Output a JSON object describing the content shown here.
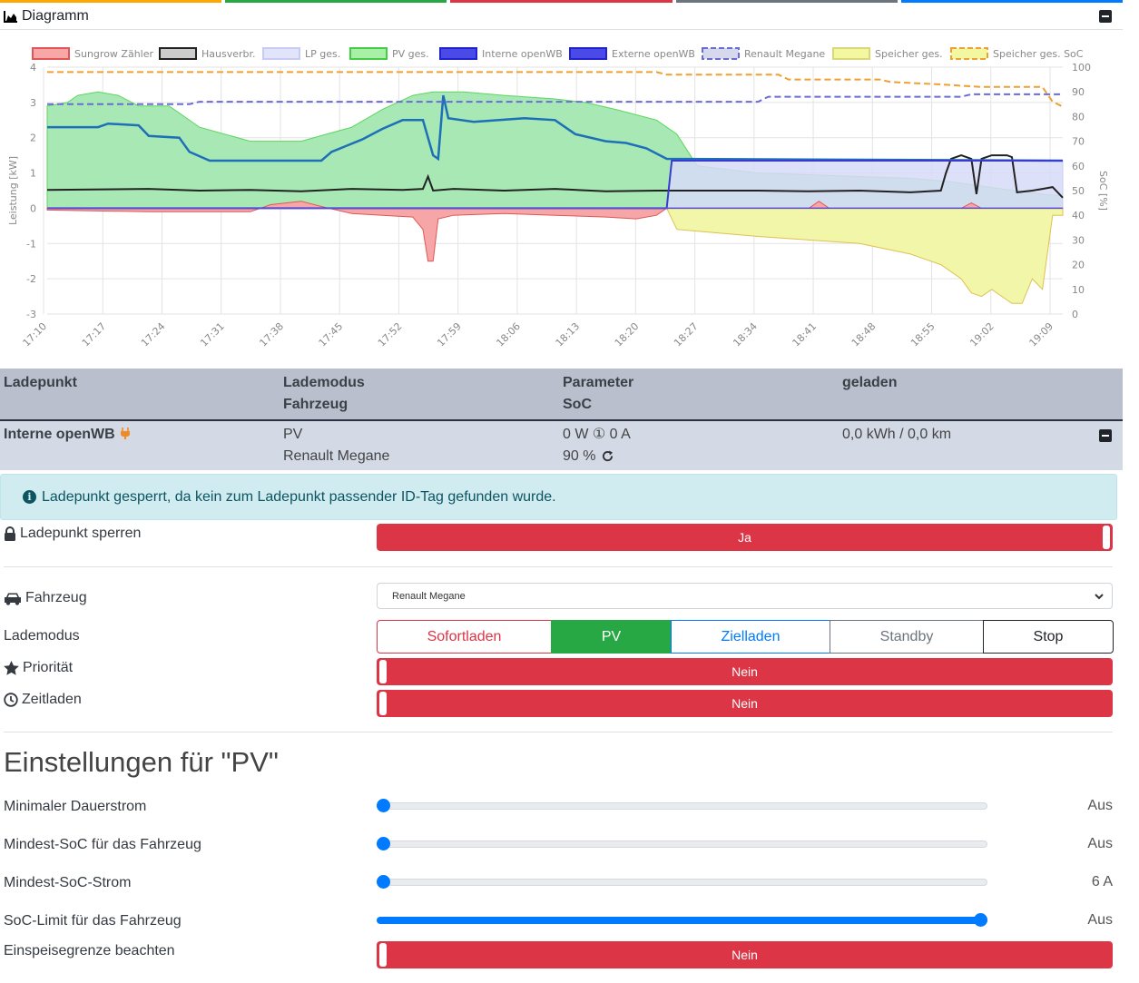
{
  "card": {
    "title": "Diagramm",
    "top_colors": [
      "#ffa600",
      "#28a745",
      "#dc3545",
      "#6c757d",
      "#007bff"
    ]
  },
  "chart_data": {
    "type": "area",
    "legend": [
      {
        "name": "Sungrow Zähler",
        "fill": "#f8a6a6",
        "stroke": "#e05555",
        "dashed": false
      },
      {
        "name": "Hausverbr.",
        "fill": "#cccccc",
        "stroke": "#222222",
        "dashed": false
      },
      {
        "name": "LP ges.",
        "fill": "#e2e4fb",
        "stroke": "#c8cbf4",
        "dashed": false
      },
      {
        "name": "PV ges.",
        "fill": "#a8f0a8",
        "stroke": "#44cc44",
        "dashed": false
      },
      {
        "name": "Interne openWB",
        "fill": "#4a4ae8",
        "stroke": "#2222cc",
        "dashed": false
      },
      {
        "name": "Externe openWB",
        "fill": "#4a4ae8",
        "stroke": "#2222cc",
        "dashed": false
      },
      {
        "name": "Renault Megane",
        "fill": "#d6d8ec",
        "stroke": "#6b6bd6",
        "dashed": true
      },
      {
        "name": "Speicher ges.",
        "fill": "#f3f7a0",
        "stroke": "#d8d87a",
        "dashed": false
      },
      {
        "name": "Speicher ges. SoC",
        "fill": "#f3f7a0",
        "stroke": "#f0a030",
        "dashed": true
      }
    ],
    "y_left": {
      "label": "Leistung [kW]",
      "min": -3,
      "max": 4,
      "ticks": [
        4,
        3,
        2,
        1,
        0,
        -1,
        -2,
        -3
      ]
    },
    "y_right": {
      "label": "SoC [%]",
      "min": 0,
      "max": 100,
      "ticks": [
        100,
        90,
        80,
        70,
        60,
        50,
        40,
        30,
        20,
        10,
        0
      ]
    },
    "x_ticks": [
      "17:10",
      "17:17",
      "17:24",
      "17:31",
      "17:38",
      "17:45",
      "17:52",
      "17:59",
      "18:06",
      "18:13",
      "18:20",
      "18:27",
      "18:34",
      "18:41",
      "18:48",
      "18:55",
      "19:02",
      "19:09"
    ],
    "series": {
      "pv": [
        [
          0,
          2.9
        ],
        [
          2,
          3.0
        ],
        [
          3,
          3.2
        ],
        [
          5,
          3.3
        ],
        [
          7,
          3.2
        ],
        [
          9,
          2.9
        ],
        [
          12,
          2.9
        ],
        [
          15,
          2.3
        ],
        [
          20,
          1.9
        ],
        [
          25,
          1.9
        ],
        [
          30,
          2.3
        ],
        [
          33,
          2.8
        ],
        [
          36,
          3.2
        ],
        [
          38,
          3.3
        ],
        [
          41,
          3.3
        ],
        [
          45,
          3.2
        ],
        [
          50,
          3.1
        ],
        [
          53,
          3.0
        ],
        [
          56,
          2.8
        ],
        [
          60,
          2.5
        ],
        [
          62,
          2.1
        ],
        [
          64,
          1.2
        ],
        [
          70,
          1.0
        ],
        [
          75,
          0.95
        ],
        [
          80,
          0.9
        ],
        [
          85,
          0.85
        ],
        [
          89,
          0.75
        ],
        [
          94,
          0.55
        ],
        [
          98,
          0.4
        ],
        [
          100,
          0.35
        ]
      ],
      "house": [
        [
          0,
          0.52
        ],
        [
          10,
          0.55
        ],
        [
          15,
          0.5
        ],
        [
          20,
          0.52
        ],
        [
          25,
          0.48
        ],
        [
          30,
          0.55
        ],
        [
          35,
          0.52
        ],
        [
          37,
          0.55
        ],
        [
          37.5,
          0.9
        ],
        [
          38,
          0.5
        ],
        [
          40,
          0.55
        ],
        [
          45,
          0.5
        ],
        [
          50,
          0.55
        ],
        [
          55,
          0.48
        ],
        [
          60,
          0.5
        ],
        [
          65,
          0.5
        ],
        [
          70,
          0.5
        ],
        [
          75,
          0.48
        ],
        [
          80,
          0.5
        ],
        [
          85,
          0.45
        ],
        [
          88,
          0.5
        ],
        [
          88.5,
          1.0
        ],
        [
          89,
          1.4
        ],
        [
          90,
          1.5
        ],
        [
          91,
          1.4
        ],
        [
          91.5,
          0.4
        ],
        [
          92,
          1.4
        ],
        [
          93,
          1.5
        ],
        [
          93.5,
          1.5
        ],
        [
          94.5,
          1.5
        ],
        [
          95,
          1.45
        ],
        [
          95.5,
          0.45
        ],
        [
          97,
          0.5
        ],
        [
          98,
          0.55
        ],
        [
          99,
          0.6
        ],
        [
          100,
          0.3
        ]
      ],
      "wb_intern": [
        [
          0,
          2.3
        ],
        [
          5,
          2.3
        ],
        [
          6,
          2.4
        ],
        [
          9,
          2.35
        ],
        [
          10,
          2.05
        ],
        [
          13,
          2.0
        ],
        [
          14,
          1.6
        ],
        [
          16,
          1.35
        ],
        [
          27,
          1.35
        ],
        [
          28,
          1.6
        ],
        [
          31,
          1.95
        ],
        [
          33,
          2.25
        ],
        [
          35,
          2.5
        ],
        [
          37,
          2.5
        ],
        [
          38,
          1.5
        ],
        [
          38.5,
          1.4
        ],
        [
          39,
          3.2
        ],
        [
          39.5,
          2.55
        ],
        [
          42,
          2.45
        ],
        [
          47,
          2.55
        ],
        [
          50,
          2.5
        ],
        [
          52,
          2.1
        ],
        [
          55,
          1.9
        ],
        [
          57,
          1.85
        ],
        [
          59,
          1.7
        ],
        [
          61,
          1.4
        ],
        [
          100,
          1.35
        ]
      ],
      "lp_total": [
        [
          0,
          0
        ],
        [
          61,
          0
        ],
        [
          61.5,
          1.35
        ],
        [
          100,
          1.35
        ]
      ],
      "grid": [
        [
          0,
          -0.05
        ],
        [
          10,
          -0.1
        ],
        [
          20,
          -0.1
        ],
        [
          22,
          0.1
        ],
        [
          25,
          0.2
        ],
        [
          27,
          0.05
        ],
        [
          30,
          -0.15
        ],
        [
          33,
          -0.2
        ],
        [
          36,
          -0.25
        ],
        [
          37,
          -0.6
        ],
        [
          37.5,
          -1.5
        ],
        [
          38,
          -1.5
        ],
        [
          38.5,
          -0.3
        ],
        [
          40,
          -0.2
        ],
        [
          45,
          -0.15
        ],
        [
          50,
          -0.2
        ],
        [
          55,
          -0.25
        ],
        [
          58,
          -0.3
        ],
        [
          60,
          -0.2
        ],
        [
          61,
          0
        ],
        [
          75,
          0
        ],
        [
          76,
          0.2
        ],
        [
          77,
          0
        ],
        [
          90,
          0
        ],
        [
          91,
          0.15
        ],
        [
          92,
          0
        ],
        [
          100,
          0
        ]
      ],
      "storage": [
        [
          0,
          0
        ],
        [
          61,
          0
        ],
        [
          62,
          -0.6
        ],
        [
          70,
          -0.8
        ],
        [
          75,
          -0.9
        ],
        [
          80,
          -1.0
        ],
        [
          85,
          -1.3
        ],
        [
          88,
          -1.6
        ],
        [
          90,
          -2.0
        ],
        [
          91,
          -2.4
        ],
        [
          92,
          -2.5
        ],
        [
          93,
          -2.3
        ],
        [
          94,
          -2.5
        ],
        [
          95,
          -2.7
        ],
        [
          96,
          -2.7
        ],
        [
          97,
          -2.0
        ],
        [
          98,
          -2.3
        ],
        [
          99,
          -0.2
        ],
        [
          100,
          -0.2
        ]
      ],
      "megane_soc": [
        [
          0,
          85
        ],
        [
          14,
          85
        ],
        [
          15,
          86
        ],
        [
          70,
          86
        ],
        [
          71,
          88
        ],
        [
          90,
          88
        ],
        [
          91,
          89
        ],
        [
          100,
          89
        ]
      ],
      "storage_soc": [
        [
          0,
          98
        ],
        [
          60,
          98
        ],
        [
          61,
          97
        ],
        [
          72,
          97
        ],
        [
          73,
          95
        ],
        [
          82,
          95
        ],
        [
          83,
          94
        ],
        [
          88,
          93
        ],
        [
          92,
          92
        ],
        [
          98,
          92
        ],
        [
          99,
          86
        ],
        [
          100,
          84
        ]
      ]
    }
  },
  "table": {
    "headers": {
      "c1": "Ladepunkt",
      "c2a": "Lademodus",
      "c2b": "Fahrzeug",
      "c3a": "Parameter",
      "c3b": "SoC",
      "c4": "geladen"
    },
    "row": {
      "name": "Interne openWB",
      "mode": "PV",
      "vehicle": "Renault Megane",
      "params": "0 W ① 0 A",
      "soc": "90 %",
      "charged": "0,0 kWh / 0,0 km"
    }
  },
  "alert": {
    "text": "Ladepunkt gesperrt, da kein zum Ladepunkt passender ID-Tag gefunden wurde."
  },
  "settings": {
    "lock": {
      "label": "Ladepunkt sperren",
      "value": "Ja"
    },
    "vehicle": {
      "label": "Fahrzeug",
      "value": "Renault Megane"
    },
    "mode": {
      "label": "Lademodus",
      "options": [
        {
          "label": "Sofortladen",
          "color": "#dc3545",
          "active": false
        },
        {
          "label": "PV",
          "color": "#28a745",
          "active": true
        },
        {
          "label": "Zielladen",
          "color": "#007bff",
          "active": false
        },
        {
          "label": "Standby",
          "color": "#6c757d",
          "active": false
        },
        {
          "label": "Stop",
          "color": "#212529",
          "active": false
        }
      ]
    },
    "priority": {
      "label": "Priorität",
      "value": "Nein"
    },
    "timed": {
      "label": "Zeitladen",
      "value": "Nein"
    }
  },
  "pv_settings": {
    "title": "Einstellungen für \"PV\"",
    "sliders": [
      {
        "label": "Minimaler Dauerstrom",
        "value": "Aus",
        "fraction": 0.0
      },
      {
        "label": "Mindest-SoC für das Fahrzeug",
        "value": "Aus",
        "fraction": 0.0
      },
      {
        "label": "Mindest-SoC-Strom",
        "value": "6 A",
        "fraction": 0.0
      },
      {
        "label": "SoC-Limit für das Fahrzeug",
        "value": "Aus",
        "fraction": 1.0
      }
    ],
    "feed_in": {
      "label": "Einspeisegrenze beachten",
      "value": "Nein"
    }
  }
}
